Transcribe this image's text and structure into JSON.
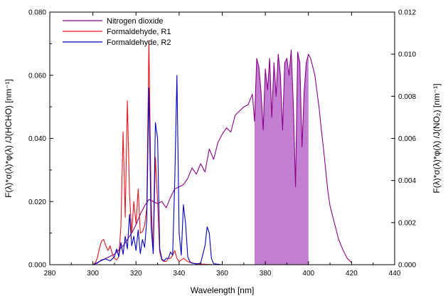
{
  "chart_data": {
    "type": "line",
    "xlabel": "Wavelength [nm]",
    "ylabel_left": "F(λ)*σ(λ)*φ(λ) /J(HCHO) [nm⁻¹]",
    "ylabel_right": "F(λ)*σ(λ)*φ(λ) /J(NO₂) [nm⁻¹]",
    "xlim": [
      280,
      440
    ],
    "ylim_left": [
      0,
      0.08
    ],
    "ylim_right": [
      0,
      0.012
    ],
    "x_ticks": [
      280,
      300,
      320,
      340,
      360,
      380,
      400,
      420,
      440
    ],
    "x_tick_labels": [
      "280",
      "300",
      "320",
      "340",
      "360",
      "380",
      "400",
      "420",
      "440"
    ],
    "y_left_ticks": [
      0,
      0.02,
      0.04,
      0.06,
      0.08
    ],
    "y_left_tick_labels": [
      "0.000",
      "0.020",
      "0.040",
      "0.060",
      "0.080"
    ],
    "y_right_ticks": [
      0,
      0.002,
      0.004,
      0.006,
      0.008,
      0.01,
      0.012
    ],
    "y_right_tick_labels": [
      "0.000",
      "0.002",
      "0.004",
      "0.006",
      "0.008",
      "0.010",
      "0.012"
    ],
    "grid": false,
    "legend_position": "top-left",
    "shaded_region": {
      "x_start": 375,
      "x_end": 400,
      "series": "Nitrogen dioxide",
      "color": "#c27fd1"
    },
    "series": [
      {
        "name": "Nitrogen dioxide",
        "axis": "right",
        "color": "#8a008a",
        "x": [
          300,
          302,
          304,
          306,
          308,
          310,
          312,
          314,
          316,
          318,
          320,
          322,
          324,
          326,
          328,
          330,
          332,
          334,
          336,
          338,
          340,
          342,
          344,
          346,
          348,
          350,
          352,
          354,
          356,
          358,
          360,
          362,
          364,
          366,
          368,
          370,
          372,
          374,
          375,
          376,
          377,
          378,
          379,
          380,
          381,
          382,
          383,
          384,
          385,
          386,
          387,
          388,
          389,
          390,
          391,
          392,
          393,
          394,
          395,
          396,
          397,
          398,
          399,
          400,
          401,
          402,
          403,
          404,
          405,
          406,
          407,
          408,
          409,
          410,
          412,
          414,
          416,
          418,
          420
        ],
        "y": [
          0.0,
          0.0001,
          0.0002,
          0.0003,
          0.0004,
          0.0005,
          0.0007,
          0.0009,
          0.0012,
          0.0015,
          0.0019,
          0.0024,
          0.0028,
          0.0031,
          0.003,
          0.0029,
          0.003,
          0.0027,
          0.0032,
          0.0036,
          0.0037,
          0.0038,
          0.0041,
          0.0046,
          0.0043,
          0.0048,
          0.0044,
          0.0055,
          0.005,
          0.0058,
          0.0062,
          0.0065,
          0.0063,
          0.0071,
          0.0073,
          0.0075,
          0.0076,
          0.0081,
          0.0068,
          0.0098,
          0.0094,
          0.0082,
          0.0064,
          0.0093,
          0.0083,
          0.0098,
          0.007,
          0.0096,
          0.008,
          0.01,
          0.009,
          0.0064,
          0.0096,
          0.0098,
          0.009,
          0.0102,
          0.0076,
          0.0037,
          0.0101,
          0.0096,
          0.0056,
          0.0082,
          0.0096,
          0.01,
          0.0098,
          0.0094,
          0.009,
          0.0082,
          0.0074,
          0.0064,
          0.0055,
          0.0045,
          0.0035,
          0.0028,
          0.002,
          0.0012,
          0.0007,
          0.0003,
          0.0001
        ]
      },
      {
        "name": "Formaldehyde, R1",
        "axis": "left",
        "color": "#e8141c",
        "x": [
          300,
          301,
          302,
          303,
          304,
          305,
          306,
          307,
          308,
          309,
          310,
          311,
          312,
          313,
          314,
          315,
          316,
          317,
          318,
          319,
          320,
          321,
          322,
          323,
          324,
          325,
          326,
          327,
          328,
          329,
          330,
          331,
          332,
          333,
          334,
          335,
          336,
          337,
          338,
          339,
          340,
          342,
          344,
          346,
          350,
          356
        ],
        "y": [
          0.0,
          0.0005,
          0.002,
          0.005,
          0.0075,
          0.008,
          0.006,
          0.0045,
          0.006,
          0.0035,
          0.002,
          0.0015,
          0.0025,
          0.012,
          0.042,
          0.015,
          0.052,
          0.022,
          0.01,
          0.02,
          0.013,
          0.024,
          0.01,
          0.0105,
          0.0125,
          0.018,
          0.071,
          0.02,
          0.0035,
          0.034,
          0.02,
          0.004,
          0.0015,
          0.001,
          0.001,
          0.002,
          0.002,
          0.003,
          0.0045,
          0.002,
          0.001,
          0.002,
          0.001,
          0.0005,
          0.0002,
          0.0
        ]
      },
      {
        "name": "Formaldehyde, R2",
        "axis": "left",
        "color": "#0000c8",
        "x": [
          300,
          302,
          304,
          306,
          308,
          310,
          311,
          312,
          313,
          314,
          315,
          316,
          317,
          318,
          319,
          320,
          321,
          322,
          323,
          324,
          325,
          326,
          327,
          328,
          329,
          330,
          331,
          332,
          333,
          334,
          335,
          336,
          337,
          338,
          339,
          340,
          341,
          342,
          343,
          344,
          345,
          346,
          348,
          350,
          352,
          353,
          354,
          355,
          356,
          360
        ],
        "y": [
          0.0,
          0.0005,
          0.0015,
          0.0018,
          0.0012,
          0.0025,
          0.005,
          0.0025,
          0.007,
          0.0033,
          0.009,
          0.005,
          0.016,
          0.006,
          0.009,
          0.0045,
          0.011,
          0.0035,
          0.008,
          0.0055,
          0.014,
          0.056,
          0.012,
          0.0035,
          0.045,
          0.04,
          0.005,
          0.0018,
          0.0012,
          0.002,
          0.002,
          0.004,
          0.003,
          0.027,
          0.06,
          0.01,
          0.003,
          0.019,
          0.013,
          0.0025,
          0.001,
          0.0005,
          0.0002,
          0.0005,
          0.006,
          0.012,
          0.01,
          0.002,
          0.0003,
          0.0
        ]
      }
    ]
  }
}
